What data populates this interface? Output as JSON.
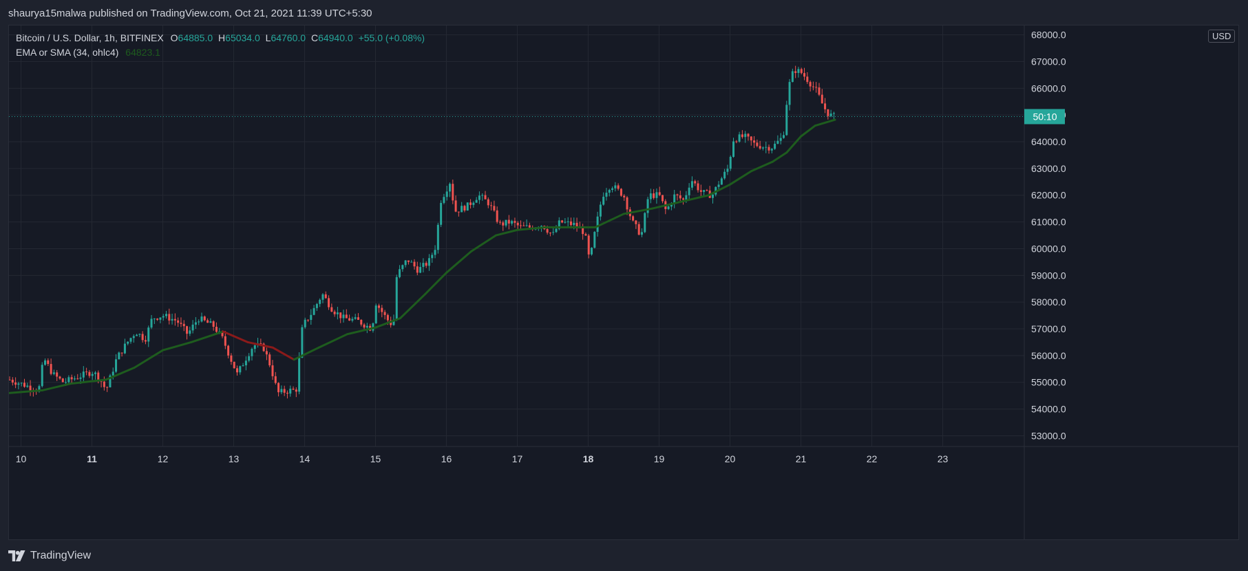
{
  "header": {
    "published_by": "shaurya15malwa published on TradingView.com, Oct 21, 2021 11:39 UTC+5:30"
  },
  "legend": {
    "symbol": "Bitcoin / U.S. Dollar, 1h, BITFINEX",
    "o_label": "O",
    "o_value": "64885.0",
    "h_label": "H",
    "h_value": "65034.0",
    "l_label": "L",
    "l_value": "64760.0",
    "c_label": "C",
    "c_value": "64940.0",
    "change": "+55.0 (+0.08%)",
    "indicator": "EMA or SMA (34, ohlc4)",
    "indicator_value": "64823.1"
  },
  "price_scale": {
    "currency": "USD",
    "countdown_label": "50:10"
  },
  "footer": {
    "brand": "TradingView"
  },
  "colors": {
    "up": "#26a69a",
    "down": "#ef5350",
    "ema": "#1e5c1e",
    "ema_down": "#8b1a1a",
    "countdown_bg": "#26a69a",
    "background": "#161a25"
  },
  "chart_data": {
    "type": "candlestick",
    "title": "Bitcoin / U.S. Dollar, 1h, BITFINEX",
    "x_tick_labels": [
      "10",
      "11",
      "12",
      "13",
      "14",
      "15",
      "16",
      "17",
      "18",
      "19",
      "20",
      "21",
      "22",
      "23"
    ],
    "x_tick_days": [
      10,
      11,
      12,
      13,
      14,
      15,
      16,
      17,
      18,
      19,
      20,
      21,
      22,
      23
    ],
    "xlim": [
      9.83,
      24.15
    ],
    "y_ticks": [
      53000,
      54000,
      55000,
      56000,
      57000,
      58000,
      59000,
      60000,
      61000,
      62000,
      63000,
      64000,
      65000,
      66000,
      67000,
      68000
    ],
    "y_tick_labels": [
      "53000.0",
      "54000.0",
      "55000.0",
      "56000.0",
      "57000.0",
      "58000.0",
      "59000.0",
      "60000.0",
      "61000.0",
      "62000.0",
      "63000.0",
      "64000.0",
      "65000.0",
      "66000.0",
      "67000.0",
      "68000.0"
    ],
    "ylim": [
      52600,
      68350
    ],
    "current_price": 64940,
    "grid": true,
    "price_path": [
      [
        9.84,
        55100
      ],
      [
        10.05,
        54900
      ],
      [
        10.25,
        54700
      ],
      [
        10.32,
        55900
      ],
      [
        10.45,
        55300
      ],
      [
        10.6,
        55000
      ],
      [
        10.8,
        55200
      ],
      [
        11.0,
        55400
      ],
      [
        11.1,
        55200
      ],
      [
        11.2,
        54700
      ],
      [
        11.35,
        55900
      ],
      [
        11.5,
        56500
      ],
      [
        11.62,
        56900
      ],
      [
        11.75,
        56600
      ],
      [
        11.85,
        57400
      ],
      [
        12.0,
        57500
      ],
      [
        12.2,
        57300
      ],
      [
        12.35,
        56800
      ],
      [
        12.5,
        57400
      ],
      [
        12.72,
        57100
      ],
      [
        12.85,
        56600
      ],
      [
        12.97,
        55800
      ],
      [
        13.05,
        55300
      ],
      [
        13.15,
        55800
      ],
      [
        13.28,
        56400
      ],
      [
        13.42,
        56300
      ],
      [
        13.52,
        55600
      ],
      [
        13.62,
        54600
      ],
      [
        13.8,
        54700
      ],
      [
        13.88,
        54700
      ],
      [
        13.97,
        57100
      ],
      [
        14.1,
        57600
      ],
      [
        14.25,
        58300
      ],
      [
        14.4,
        57700
      ],
      [
        14.55,
        57400
      ],
      [
        14.75,
        57300
      ],
      [
        14.95,
        57000
      ],
      [
        15.0,
        58000
      ],
      [
        15.15,
        57400
      ],
      [
        15.25,
        57100
      ],
      [
        15.3,
        59000
      ],
      [
        15.45,
        59600
      ],
      [
        15.6,
        59200
      ],
      [
        15.75,
        59500
      ],
      [
        15.85,
        60100
      ],
      [
        15.92,
        61800
      ],
      [
        16.05,
        62500
      ],
      [
        16.12,
        61400
      ],
      [
        16.3,
        61600
      ],
      [
        16.45,
        62000
      ],
      [
        16.6,
        61700
      ],
      [
        16.75,
        60900
      ],
      [
        16.9,
        61000
      ],
      [
        17.05,
        60800
      ],
      [
        17.2,
        60800
      ],
      [
        17.35,
        60900
      ],
      [
        17.5,
        60500
      ],
      [
        17.6,
        61000
      ],
      [
        17.8,
        60900
      ],
      [
        17.95,
        60600
      ],
      [
        18.02,
        59500
      ],
      [
        18.1,
        60700
      ],
      [
        18.2,
        62000
      ],
      [
        18.32,
        62400
      ],
      [
        18.5,
        62000
      ],
      [
        18.62,
        61000
      ],
      [
        18.75,
        60500
      ],
      [
        18.85,
        62000
      ],
      [
        19.0,
        62000
      ],
      [
        19.1,
        61400
      ],
      [
        19.22,
        62000
      ],
      [
        19.35,
        61800
      ],
      [
        19.45,
        62600
      ],
      [
        19.6,
        62100
      ],
      [
        19.75,
        62000
      ],
      [
        19.85,
        62500
      ],
      [
        19.97,
        63000
      ],
      [
        20.05,
        64100
      ],
      [
        20.2,
        64200
      ],
      [
        20.35,
        63900
      ],
      [
        20.5,
        63800
      ],
      [
        20.6,
        63800
      ],
      [
        20.75,
        64200
      ],
      [
        20.82,
        66000
      ],
      [
        20.9,
        66700
      ],
      [
        21.0,
        66600
      ],
      [
        21.1,
        66300
      ],
      [
        21.22,
        65900
      ],
      [
        21.32,
        65300
      ],
      [
        21.4,
        65000
      ],
      [
        21.48,
        64940
      ]
    ],
    "ema_path": [
      [
        9.84,
        54600
      ],
      [
        10.3,
        54700
      ],
      [
        10.7,
        54950
      ],
      [
        11.2,
        55100
      ],
      [
        11.6,
        55550
      ],
      [
        12.0,
        56200
      ],
      [
        12.4,
        56500
      ],
      [
        12.85,
        56900
      ],
      [
        13.2,
        56500
      ],
      [
        13.55,
        56300
      ],
      [
        13.85,
        55850
      ],
      [
        14.2,
        56300
      ],
      [
        14.6,
        56800
      ],
      [
        15.0,
        57050
      ],
      [
        15.35,
        57400
      ],
      [
        15.7,
        58300
      ],
      [
        16.0,
        59100
      ],
      [
        16.35,
        59900
      ],
      [
        16.7,
        60500
      ],
      [
        17.0,
        60700
      ],
      [
        17.4,
        60800
      ],
      [
        17.8,
        60800
      ],
      [
        18.1,
        60800
      ],
      [
        18.5,
        61300
      ],
      [
        18.9,
        61500
      ],
      [
        19.3,
        61750
      ],
      [
        19.7,
        62000
      ],
      [
        20.0,
        62400
      ],
      [
        20.3,
        62900
      ],
      [
        20.6,
        63250
      ],
      [
        20.8,
        63600
      ],
      [
        21.0,
        64200
      ],
      [
        21.2,
        64600
      ],
      [
        21.48,
        64823
      ]
    ]
  }
}
